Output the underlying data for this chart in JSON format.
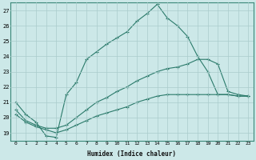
{
  "xlabel": "Humidex (Indice chaleur)",
  "bg_color": "#cce8e8",
  "grid_color": "#aacccc",
  "line_color": "#2a7a6a",
  "xlim": [
    -0.5,
    23.5
  ],
  "ylim": [
    18.5,
    27.5
  ],
  "xticks": [
    0,
    1,
    2,
    3,
    4,
    5,
    6,
    7,
    8,
    9,
    10,
    11,
    12,
    13,
    14,
    15,
    16,
    17,
    18,
    19,
    20,
    21,
    22,
    23
  ],
  "yticks": [
    19,
    20,
    21,
    22,
    23,
    24,
    25,
    26,
    27
  ],
  "line1_x": [
    0,
    1,
    2,
    3,
    4,
    5,
    6,
    7,
    8,
    9,
    10,
    11,
    12,
    13,
    14,
    15,
    16,
    17,
    18,
    19,
    20,
    21,
    22,
    23
  ],
  "line1_y": [
    21.0,
    20.2,
    19.7,
    18.8,
    18.7,
    21.5,
    22.3,
    23.8,
    24.3,
    24.8,
    25.2,
    25.6,
    26.3,
    26.8,
    27.4,
    26.5,
    26.0,
    25.3,
    24.0,
    23.0,
    21.5,
    21.5,
    21.4,
    21.4
  ],
  "line1_has_markers": [
    1,
    1,
    1,
    1,
    1,
    1,
    1,
    1,
    1,
    1,
    1,
    1,
    1,
    1,
    1,
    1,
    1,
    1,
    1,
    0,
    0,
    0,
    0,
    0
  ],
  "line2_x": [
    0,
    1,
    2,
    3,
    4,
    5,
    6,
    7,
    8,
    9,
    10,
    11,
    12,
    13,
    14,
    15,
    16,
    17,
    18,
    19,
    20,
    21,
    22,
    23
  ],
  "line2_y": [
    20.5,
    19.8,
    19.5,
    19.3,
    19.3,
    19.5,
    20.0,
    20.5,
    21.0,
    21.3,
    21.7,
    22.0,
    22.4,
    22.7,
    23.0,
    23.2,
    23.3,
    23.5,
    23.8,
    23.8,
    23.5,
    21.7,
    21.5,
    21.4
  ],
  "line3_x": [
    0,
    1,
    2,
    3,
    4,
    5,
    6,
    7,
    8,
    9,
    10,
    11,
    12,
    13,
    14,
    15,
    16,
    17,
    18,
    19,
    20,
    21,
    22,
    23
  ],
  "line3_y": [
    20.2,
    19.7,
    19.4,
    19.2,
    19.0,
    19.2,
    19.5,
    19.8,
    20.1,
    20.3,
    20.5,
    20.7,
    21.0,
    21.2,
    21.4,
    21.5,
    21.5,
    21.5,
    21.5,
    21.5,
    21.5,
    21.5,
    21.4,
    21.4
  ]
}
